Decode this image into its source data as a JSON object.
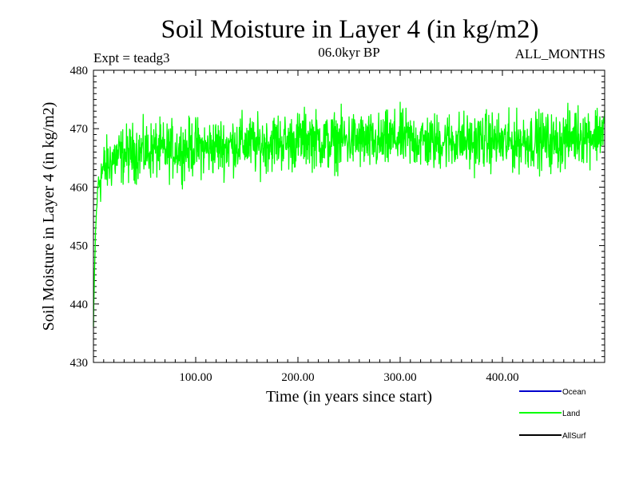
{
  "chart_data": {
    "type": "line",
    "title": "Soil Moisture in Layer 4 (in kg/m2)",
    "subtitle_left": "Expt = teadg3",
    "subtitle_center": "06.0kyr BP",
    "subtitle_right": "ALL_MONTHS",
    "xlabel": "Time (in years since start)",
    "ylabel": "Soil Moisture in Layer 4 (in kg/m2)",
    "xlim": [
      0,
      500
    ],
    "ylim": [
      430,
      480
    ],
    "x_ticks": [
      100,
      200,
      300,
      400
    ],
    "x_tick_labels": [
      "100.00",
      "200.00",
      "300.00",
      "400.00"
    ],
    "y_ticks": [
      430,
      440,
      450,
      460,
      470,
      480
    ],
    "y_tick_labels": [
      "430",
      "440",
      "450",
      "460",
      "470",
      "480"
    ],
    "legend": [
      {
        "name": "Ocean",
        "color": "#0000cc"
      },
      {
        "name": "Land",
        "color": "#00ff00"
      },
      {
        "name": "AllSurf",
        "color": "#000000"
      }
    ],
    "series": [
      {
        "name": "Land",
        "color": "#00ff00",
        "x": [
          0,
          1,
          2,
          3,
          4,
          5,
          7,
          10,
          15,
          20,
          30,
          40,
          50,
          60,
          70,
          80,
          90,
          100,
          110,
          120,
          130,
          140,
          150,
          160,
          170,
          180,
          190,
          200,
          210,
          220,
          230,
          240,
          250,
          260,
          270,
          280,
          290,
          300,
          310,
          320,
          330,
          340,
          350,
          360,
          370,
          380,
          390,
          400,
          410,
          420,
          430,
          440,
          450,
          460,
          470,
          480,
          490,
          499
        ],
        "values": [
          436,
          445,
          452,
          456,
          459,
          461,
          462,
          463,
          464,
          465,
          465.5,
          466,
          466,
          466.5,
          466,
          466.5,
          466.5,
          467,
          466.5,
          467,
          467,
          467.5,
          467.5,
          467,
          467.5,
          468,
          467.5,
          468,
          468.5,
          468,
          467.5,
          468,
          468,
          468,
          467.5,
          467.5,
          468,
          468.5,
          468,
          468,
          467.5,
          468,
          468,
          468,
          467.5,
          468,
          468,
          467.5,
          467.5,
          468,
          468,
          468,
          467.5,
          468,
          469,
          469,
          469,
          470
        ]
      }
    ]
  }
}
